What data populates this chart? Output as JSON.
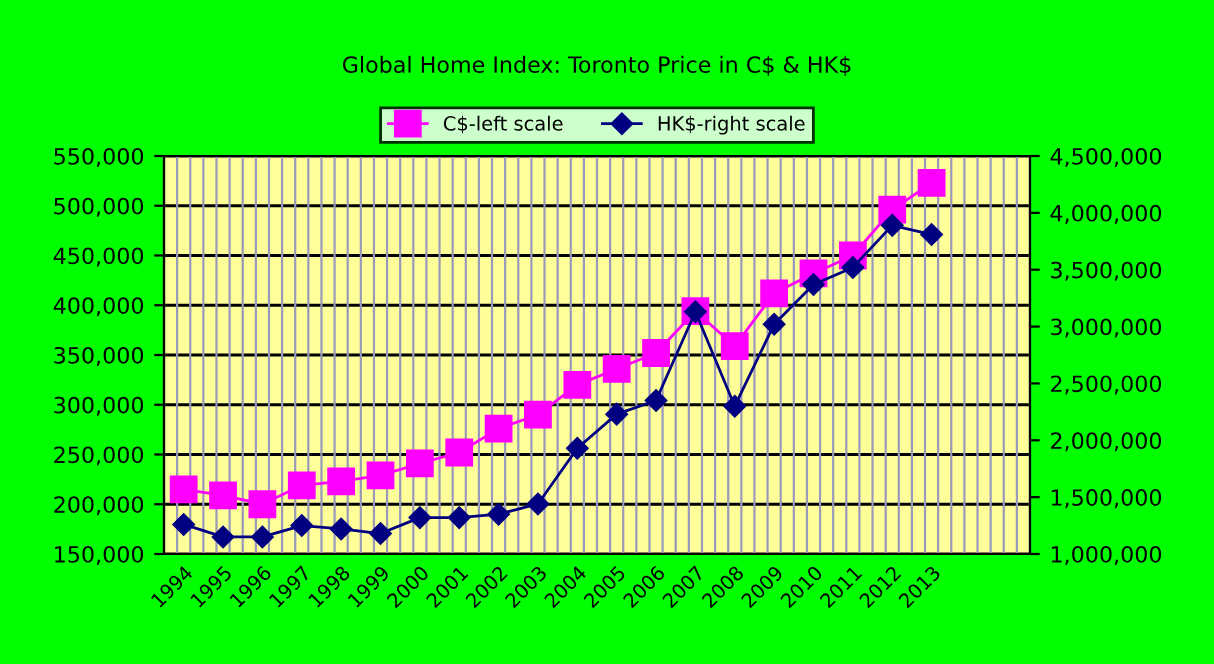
{
  "chart_data": {
    "type": "line",
    "title": "Global Home Index: Toronto Price in C$ & HK$",
    "categories": [
      "1994",
      "1995",
      "1996",
      "1997",
      "1998",
      "1999",
      "2000",
      "2001",
      "2002",
      "2003",
      "2004",
      "2005",
      "2006",
      "2007",
      "2008",
      "2009",
      "2010",
      "2011",
      "2012",
      "2013",
      null,
      null
    ],
    "series": [
      {
        "name": "C$-left scale",
        "color": "#ff00ff",
        "marker": "square",
        "values": [
          215000,
          209000,
          200000,
          219000,
          223000,
          229000,
          241000,
          252000,
          276000,
          290000,
          320000,
          336000,
          352000,
          394000,
          359000,
          412000,
          432000,
          450000,
          496000,
          523000,
          null,
          null
        ]
      },
      {
        "name": "HK$-right scale",
        "color": "#000080",
        "marker": "diamond",
        "axis": "y2",
        "values": [
          1260000,
          1150000,
          1150000,
          1250000,
          1220000,
          1180000,
          1320000,
          1320000,
          1350000,
          1440000,
          1930000,
          2230000,
          2350000,
          3130000,
          2300000,
          3020000,
          3370000,
          3520000,
          3890000,
          3810000,
          null,
          null
        ]
      }
    ],
    "ylim": [
      150000,
      550000
    ],
    "yticks": [
      {
        "value": 150000,
        "label": "150,000"
      },
      {
        "value": 200000,
        "label": "200,000"
      },
      {
        "value": 250000,
        "label": "250,000"
      },
      {
        "value": 300000,
        "label": "300,000"
      },
      {
        "value": 350000,
        "label": "350,000"
      },
      {
        "value": 400000,
        "label": "400,000"
      },
      {
        "value": 450000,
        "label": "450,000"
      },
      {
        "value": 500000,
        "label": "500,000"
      },
      {
        "value": 550000,
        "label": "550,000"
      }
    ],
    "y2lim": [
      1000000,
      4500000
    ],
    "y2ticks": [
      {
        "value": 1000000,
        "label": "1,000,000"
      },
      {
        "value": 1500000,
        "label": "1,500,000"
      },
      {
        "value": 2000000,
        "label": "2,000,000"
      },
      {
        "value": 2500000,
        "label": "2,500,000"
      },
      {
        "value": 3000000,
        "label": "3,000,000"
      },
      {
        "value": 3500000,
        "label": "3,500,000"
      },
      {
        "value": 4000000,
        "label": "4,000,000"
      },
      {
        "value": 4500000,
        "label": "4,500,000"
      }
    ],
    "grid": true,
    "legend": "top",
    "line_style": "solid"
  }
}
